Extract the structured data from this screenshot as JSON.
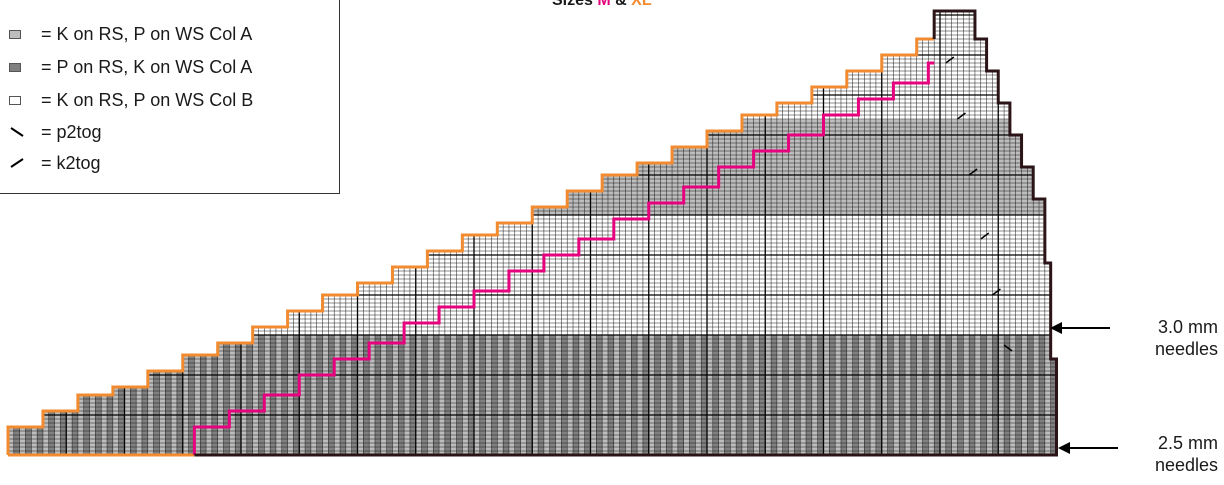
{
  "title": {
    "prefix": "Sizes",
    "size_a": "M",
    "joiner": "&",
    "size_b": "XL"
  },
  "legend": [
    {
      "symbol": "swatch",
      "color": "#bdbdbd",
      "label": "= K on RS, P on WS Col A"
    },
    {
      "symbol": "swatch",
      "color": "#808080",
      "label": "= P on RS, K on WS Col A"
    },
    {
      "symbol": "swatch",
      "color": "#ffffff",
      "label": "= K on RS, P on WS Col B"
    },
    {
      "symbol": "p2tog-icon",
      "label": "= p2tog"
    },
    {
      "symbol": "k2tog-icon",
      "label": "= k2tog"
    }
  ],
  "annotations": {
    "needle_3": {
      "line1": "3.0 mm",
      "line2": "needles"
    },
    "needle_25": {
      "line1": "2.5 mm",
      "line2": "needles"
    }
  },
  "colors": {
    "col_a_light": "#bdbdbd",
    "col_a_dark": "#808080",
    "col_b": "#ffffff",
    "size_m_outline": "#e6007e",
    "size_xl_outline": "#f28a30",
    "outer_outline": "#2a1418",
    "grid_line": "#1a1a1a"
  }
}
